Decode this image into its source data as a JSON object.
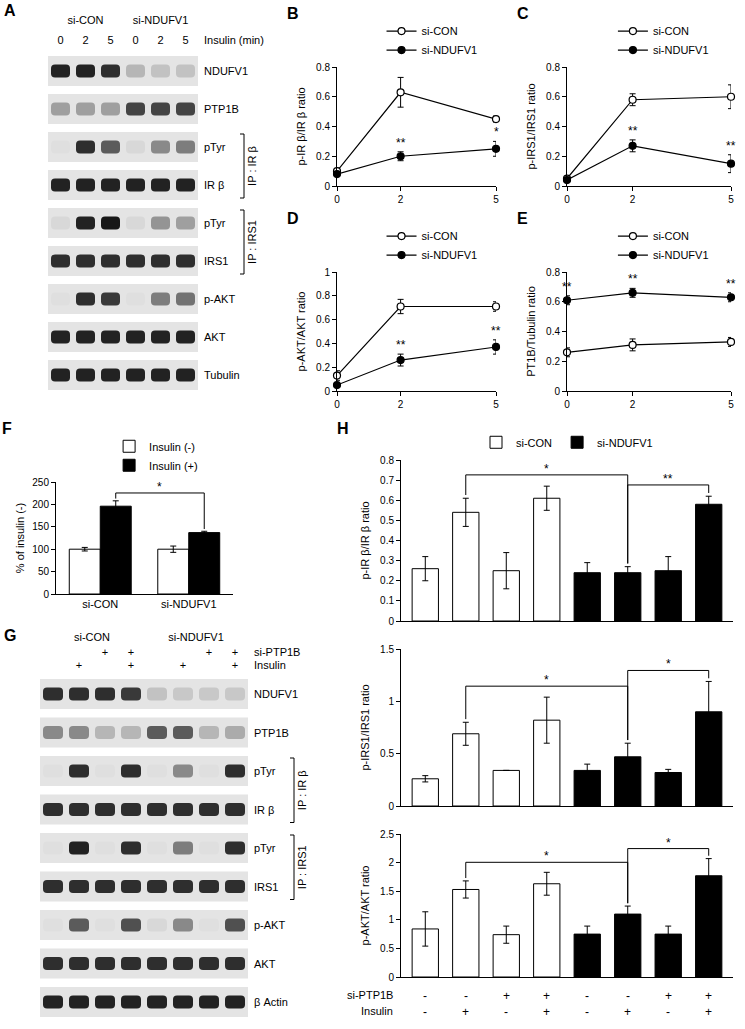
{
  "blots": [
    {
      "label": "A",
      "groups": [
        "si-CON",
        "si-NDUFV1"
      ],
      "lane_rows": [
        {
          "label": "Insulin (min)",
          "values": [
            "0",
            "2",
            "5",
            "0",
            "2",
            "5"
          ]
        }
      ],
      "rows": [
        {
          "label": "NDUFV1",
          "intensity": [
            0.85,
            0.85,
            0.8,
            0.2,
            0.15,
            0.15
          ]
        },
        {
          "label": "PTP1B",
          "intensity": [
            0.3,
            0.3,
            0.3,
            0.7,
            0.7,
            0.7
          ]
        },
        {
          "label": "pTyr",
          "ip": "IP : IR β",
          "intensity": [
            0.02,
            0.8,
            0.6,
            0.05,
            0.4,
            0.45
          ]
        },
        {
          "label": "IR β",
          "ip": "IP : IR β",
          "intensity": [
            0.85,
            0.85,
            0.85,
            0.85,
            0.85,
            0.85
          ]
        },
        {
          "label": "pTyr",
          "ip": "IP : IRS1",
          "intensity": [
            0.05,
            0.85,
            0.9,
            0.05,
            0.35,
            0.3
          ]
        },
        {
          "label": "IRS1",
          "ip": "IP : IRS1",
          "intensity": [
            0.8,
            0.8,
            0.8,
            0.8,
            0.8,
            0.8
          ]
        },
        {
          "label": "p-AKT",
          "intensity": [
            0.02,
            0.8,
            0.75,
            0.02,
            0.45,
            0.5
          ]
        },
        {
          "label": "AKT",
          "intensity": [
            0.85,
            0.85,
            0.85,
            0.85,
            0.85,
            0.85
          ]
        },
        {
          "label": "Tubulin",
          "intensity": [
            0.85,
            0.85,
            0.85,
            0.85,
            0.85,
            0.85
          ]
        }
      ]
    },
    {
      "label": "G",
      "groups": [
        "si-CON",
        "si-NDUFV1"
      ],
      "lane_rows": [
        {
          "label": "si-PTP1B",
          "values": [
            null,
            null,
            "+",
            "+",
            null,
            null,
            "+",
            "+"
          ]
        },
        {
          "label": "Insulin",
          "values": [
            null,
            "+",
            null,
            "+",
            null,
            "+",
            null,
            "+"
          ]
        }
      ],
      "rows": [
        {
          "label": "NDUFV1",
          "intensity": [
            0.8,
            0.8,
            0.8,
            0.75,
            0.15,
            0.12,
            0.12,
            0.12
          ]
        },
        {
          "label": "PTP1B",
          "intensity": [
            0.4,
            0.4,
            0.2,
            0.2,
            0.6,
            0.6,
            0.2,
            0.25
          ]
        },
        {
          "label": "pTyr",
          "ip": "IP : IR β",
          "intensity": [
            0.02,
            0.8,
            0.02,
            0.8,
            0.02,
            0.4,
            0.02,
            0.8
          ]
        },
        {
          "label": "IR β",
          "ip": "IP : IR β",
          "intensity": [
            0.8,
            0.8,
            0.8,
            0.8,
            0.8,
            0.8,
            0.8,
            0.8
          ]
        },
        {
          "label": "pTyr",
          "ip": "IP : IRS1",
          "intensity": [
            0.02,
            0.85,
            0.02,
            0.8,
            0.02,
            0.45,
            0.02,
            0.8
          ]
        },
        {
          "label": "IRS1",
          "ip": "IP : IRS1",
          "intensity": [
            0.8,
            0.8,
            0.8,
            0.8,
            0.8,
            0.8,
            0.8,
            0.8
          ]
        },
        {
          "label": "p-AKT",
          "intensity": [
            0.02,
            0.6,
            0.02,
            0.65,
            0.05,
            0.4,
            0.02,
            0.65
          ]
        },
        {
          "label": "AKT",
          "intensity": [
            0.8,
            0.8,
            0.8,
            0.8,
            0.8,
            0.8,
            0.8,
            0.8
          ]
        },
        {
          "label": "β Actin",
          "intensity": [
            0.85,
            0.85,
            0.85,
            0.85,
            0.85,
            0.85,
            0.85,
            0.85
          ]
        }
      ]
    }
  ],
  "chart_data": [
    {
      "type": "line",
      "label": "B",
      "y_title": "p-IR β/IR β ratio",
      "x": [
        0,
        2,
        5
      ],
      "xlim": [
        0,
        5
      ],
      "xticks": [
        0,
        2,
        5
      ],
      "ylim": [
        0,
        0.8
      ],
      "yticks": [
        0,
        0.2,
        0.4,
        0.6,
        0.8
      ],
      "legend": "top",
      "series": [
        {
          "name": "si-CON",
          "color": "#000000",
          "marker": "open-circle",
          "values": [
            0.1,
            0.63,
            0.45
          ],
          "errors": [
            0.02,
            0.1,
            0.02
          ]
        },
        {
          "name": "si-NDUFV1",
          "color": "#000000",
          "marker": "filled-circle",
          "values": [
            0.08,
            0.2,
            0.25
          ],
          "errors": [
            0.01,
            0.03,
            0.05
          ]
        }
      ],
      "annotations": [
        {
          "x": 2,
          "text": "**"
        },
        {
          "x": 5,
          "text": "*"
        }
      ]
    },
    {
      "type": "line",
      "label": "C",
      "y_title": "p-IRS1/IRS1 ratio",
      "x": [
        0,
        2,
        5
      ],
      "xlim": [
        0,
        5
      ],
      "xticks": [
        0,
        2,
        5
      ],
      "ylim": [
        0,
        0.8
      ],
      "yticks": [
        0,
        0.2,
        0.4,
        0.6,
        0.8
      ],
      "legend": "top",
      "series": [
        {
          "name": "si-CON",
          "color": "#000000",
          "marker": "open-circle",
          "values": [
            0.05,
            0.58,
            0.6
          ],
          "errors": [
            0.01,
            0.04,
            0.08
          ]
        },
        {
          "name": "si-NDUFV1",
          "color": "#000000",
          "marker": "filled-circle",
          "values": [
            0.04,
            0.27,
            0.15
          ],
          "errors": [
            0.01,
            0.04,
            0.06
          ]
        }
      ],
      "annotations": [
        {
          "x": 2,
          "text": "**"
        },
        {
          "x": 5,
          "text": "**"
        }
      ]
    },
    {
      "type": "line",
      "label": "D",
      "y_title": "p-AKT/AKT ratio",
      "x": [
        0,
        2,
        5
      ],
      "xlim": [
        0,
        5
      ],
      "xticks": [
        0,
        2,
        5
      ],
      "ylim": [
        0,
        1
      ],
      "yticks": [
        0,
        0.2,
        0.4,
        0.6,
        0.8,
        1
      ],
      "legend": "top",
      "series": [
        {
          "name": "si-CON",
          "color": "#000000",
          "marker": "open-circle",
          "values": [
            0.13,
            0.71,
            0.71
          ],
          "errors": [
            0.04,
            0.06,
            0.04
          ]
        },
        {
          "name": "si-NDUFV1",
          "color": "#000000",
          "marker": "filled-circle",
          "values": [
            0.05,
            0.26,
            0.37
          ],
          "errors": [
            0.02,
            0.05,
            0.06
          ]
        }
      ],
      "annotations": [
        {
          "x": 2,
          "text": "**"
        },
        {
          "x": 5,
          "text": "**"
        }
      ]
    },
    {
      "type": "line",
      "label": "E",
      "y_title": "PT1B/Tubulin ratio",
      "x": [
        0,
        2,
        5
      ],
      "xlim": [
        0,
        5
      ],
      "xticks": [
        0,
        2,
        5
      ],
      "ylim": [
        0,
        0.8
      ],
      "yticks": [
        0,
        0.2,
        0.4,
        0.6,
        0.8
      ],
      "legend": "top",
      "series": [
        {
          "name": "si-CON",
          "color": "#000000",
          "marker": "open-circle",
          "values": [
            0.26,
            0.31,
            0.33
          ],
          "errors": [
            0.03,
            0.04,
            0.03
          ]
        },
        {
          "name": "si-NDUFV1",
          "color": "#000000",
          "marker": "filled-circle",
          "values": [
            0.61,
            0.66,
            0.63
          ],
          "errors": [
            0.03,
            0.03,
            0.03
          ]
        }
      ],
      "annotations": [
        {
          "x": 0,
          "text": "**"
        },
        {
          "x": 2,
          "text": "**"
        },
        {
          "x": 5,
          "text": "**"
        }
      ]
    },
    {
      "type": "bar",
      "label": "F",
      "y_title": "% of insulin (-)",
      "categories": [
        "si-CON",
        "si-NDUFV1"
      ],
      "ylim": [
        0,
        250
      ],
      "yticks": [
        0,
        50,
        100,
        150,
        200,
        250
      ],
      "legend": "top",
      "series": [
        {
          "name": "Insulin (-)",
          "color": "#ffffff",
          "values": [
            100,
            100
          ],
          "errors": [
            4,
            7
          ]
        },
        {
          "name": "Insulin (+)",
          "color": "#000000",
          "values": [
            196,
            137
          ],
          "errors": [
            12,
            3
          ]
        }
      ],
      "brackets": [
        {
          "between": [
            0,
            1
          ],
          "series": "Insulin (+)",
          "text": "*"
        }
      ]
    },
    {
      "type": "bar",
      "label": "H",
      "y_title": "p-IR β/IR β ratio",
      "categories": [
        null,
        null,
        null,
        null,
        null,
        null,
        null,
        null
      ],
      "ylim": [
        0,
        0.8
      ],
      "yticks": [
        0,
        0.1,
        0.2,
        0.3,
        0.4,
        0.5,
        0.6,
        0.7,
        0.8
      ],
      "tick_labels": "y",
      "legend": "top",
      "series": [
        {
          "name": "si-CON",
          "color": "#ffffff",
          "values": [
            0.26,
            0.54,
            0.25,
            0.61,
            null,
            null,
            null,
            null
          ],
          "errors": [
            0.06,
            0.07,
            0.09,
            0.06,
            null,
            null,
            null,
            null
          ]
        },
        {
          "name": "si-NDUFV1",
          "color": "#000000",
          "values": [
            null,
            null,
            null,
            null,
            0.24,
            0.24,
            0.25,
            0.58
          ],
          "errors": [
            null,
            null,
            null,
            null,
            0.05,
            0.03,
            0.07,
            0.04
          ]
        }
      ],
      "brackets": [
        {
          "between": [
            1,
            5
          ],
          "text": "*"
        },
        {
          "between": [
            5,
            7
          ],
          "text": "**"
        }
      ]
    },
    {
      "type": "bar",
      "y_title": "p-IRS1/IRS1 ratio",
      "categories": [
        null,
        null,
        null,
        null,
        null,
        null,
        null,
        null
      ],
      "ylim": [
        0,
        1.5
      ],
      "yticks": [
        0,
        0.5,
        1,
        1.5
      ],
      "tick_labels": "y",
      "series": [
        {
          "name": "si-CON",
          "color": "#ffffff",
          "values": [
            0.26,
            0.69,
            0.34,
            0.82,
            null,
            null,
            null,
            null
          ],
          "errors": [
            0.03,
            0.11,
            0,
            0.22,
            null,
            null,
            null,
            null
          ]
        },
        {
          "name": "si-NDUFV1",
          "color": "#000000",
          "values": [
            null,
            null,
            null,
            null,
            0.34,
            0.47,
            0.32,
            0.9
          ],
          "errors": [
            null,
            null,
            null,
            null,
            0.06,
            0.13,
            0.03,
            0.29
          ]
        }
      ],
      "brackets": [
        {
          "between": [
            1,
            5
          ],
          "text": "*"
        },
        {
          "between": [
            5,
            7
          ],
          "text": "*"
        }
      ]
    },
    {
      "type": "bar",
      "y_title": "p-AKT/AKT ratio",
      "categories": [
        null,
        null,
        null,
        null,
        null,
        null,
        null,
        null
      ],
      "ylim": [
        0,
        2.5
      ],
      "yticks": [
        0,
        0.5,
        1,
        1.5,
        2,
        2.5
      ],
      "tick_labels": "y",
      "series": [
        {
          "name": "si-CON",
          "color": "#ffffff",
          "values": [
            0.84,
            1.53,
            0.74,
            1.63,
            null,
            null,
            null,
            null
          ],
          "errors": [
            0.3,
            0.15,
            0.15,
            0.2,
            null,
            null,
            null,
            null
          ]
        },
        {
          "name": "si-NDUFV1",
          "color": "#000000",
          "values": [
            null,
            null,
            null,
            null,
            0.75,
            1.1,
            0.75,
            1.77
          ],
          "errors": [
            null,
            null,
            null,
            null,
            0.14,
            0.14,
            0.14,
            0.3
          ]
        }
      ],
      "brackets": [
        {
          "between": [
            1,
            5
          ],
          "text": "*"
        },
        {
          "between": [
            5,
            7
          ],
          "text": "*"
        }
      ],
      "x_rows": [
        {
          "label": "si-PTP1B",
          "values": [
            "-",
            "-",
            "+",
            "+",
            "-",
            "-",
            "+",
            "+"
          ]
        },
        {
          "label": "Insulin",
          "values": [
            "-",
            "+",
            "-",
            "+",
            "-",
            "+",
            "-",
            "+"
          ]
        }
      ]
    }
  ]
}
